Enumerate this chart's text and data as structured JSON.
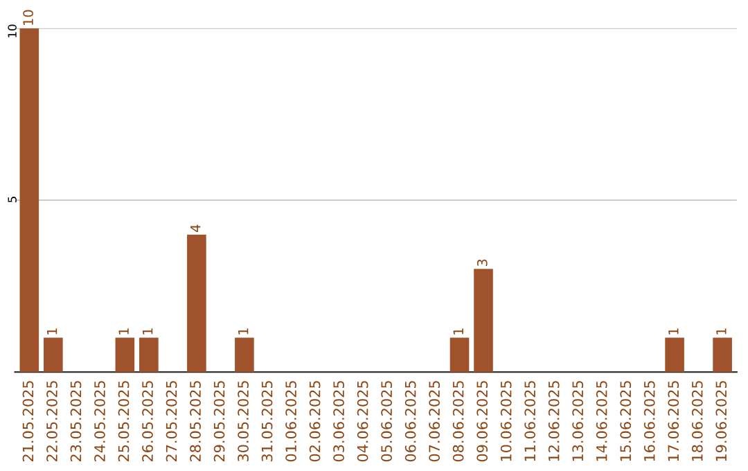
{
  "chart_data": {
    "type": "bar",
    "categories": [
      "21.05.2025",
      "22.05.2025",
      "23.05.2025",
      "24.05.2025",
      "25.05.2025",
      "26.05.2025",
      "27.05.2025",
      "28.05.2025",
      "29.05.2025",
      "30.05.2025",
      "31.05.2025",
      "01.06.2025",
      "02.06.2025",
      "03.06.2025",
      "04.06.2025",
      "05.06.2025",
      "06.06.2025",
      "07.06.2025",
      "08.06.2025",
      "09.06.2025",
      "10.06.2025",
      "11.06.2025",
      "12.06.2025",
      "13.06.2025",
      "14.06.2025",
      "15.06.2025",
      "16.06.2025",
      "17.06.2025",
      "18.06.2025",
      "19.06.2025"
    ],
    "values": [
      10,
      1,
      0,
      0,
      1,
      1,
      0,
      4,
      0,
      1,
      0,
      0,
      0,
      0,
      0,
      0,
      0,
      0,
      1,
      3,
      0,
      0,
      0,
      0,
      0,
      0,
      0,
      1,
      0,
      1
    ],
    "value_labels": [
      "10",
      "1",
      null,
      null,
      "1",
      "1",
      null,
      "4",
      null,
      "1",
      null,
      null,
      null,
      null,
      null,
      null,
      null,
      null,
      "1",
      "3",
      null,
      null,
      null,
      null,
      null,
      null,
      null,
      "1",
      null,
      "1"
    ],
    "color": "#a0522d",
    "ylim": [
      0,
      10
    ],
    "yticks": [
      5,
      10
    ],
    "grid": "y",
    "legend": false
  }
}
